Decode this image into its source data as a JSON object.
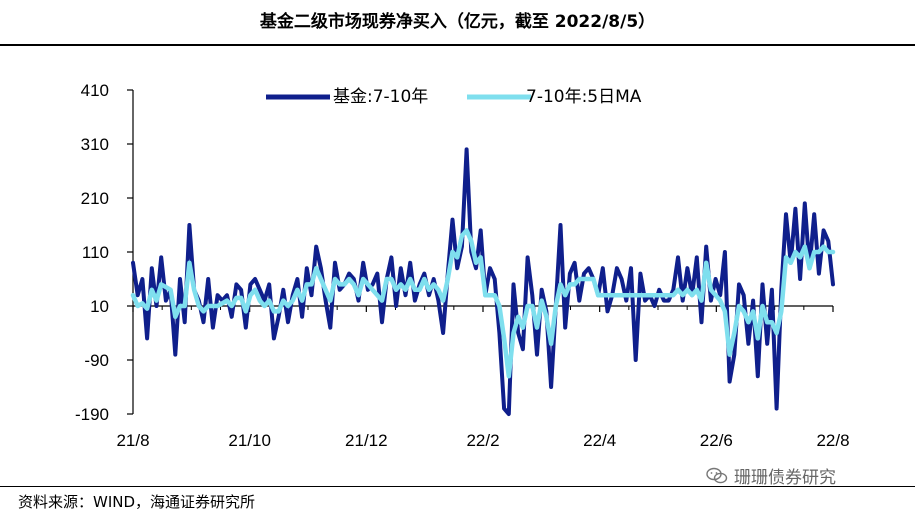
{
  "title": "基金二级市场现券净买入（亿元，截至 2022/8/5）",
  "source": "资料来源：WIND，海通证券研究所",
  "watermark": "珊珊债券研究",
  "colors": {
    "series1": "#0f1f8c",
    "series2": "#7fdfee"
  },
  "chart_data": {
    "type": "line",
    "yticks": [
      410,
      310,
      210,
      110,
      10,
      -90,
      -190
    ],
    "ylim": [
      -190,
      410
    ],
    "xticks": [
      "21/8",
      "21/10",
      "21/12",
      "22/2",
      "22/4",
      "22/6",
      "22/8"
    ],
    "grid": false,
    "legend_position": "top",
    "series": [
      {
        "name": "基金:7-10年",
        "values": [
          90,
          30,
          60,
          -50,
          80,
          10,
          100,
          20,
          40,
          -80,
          60,
          -20,
          160,
          40,
          20,
          -20,
          60,
          -30,
          30,
          20,
          30,
          -10,
          50,
          40,
          -30,
          50,
          60,
          40,
          20,
          50,
          -50,
          -10,
          40,
          -20,
          30,
          60,
          -10,
          80,
          30,
          120,
          80,
          20,
          -30,
          90,
          40,
          50,
          70,
          60,
          20,
          90,
          40,
          50,
          70,
          -20,
          60,
          100,
          10,
          80,
          30,
          90,
          20,
          50,
          70,
          30,
          60,
          20,
          -40,
          70,
          170,
          80,
          120,
          300,
          110,
          80,
          150,
          30,
          80,
          60,
          -40,
          -180,
          -190,
          50,
          -40,
          -70,
          100,
          30,
          -80,
          40,
          0,
          -140,
          10,
          160,
          -30,
          70,
          90,
          20,
          70,
          80,
          60,
          30,
          80,
          0,
          30,
          80,
          60,
          20,
          80,
          -90,
          70,
          20,
          30,
          10,
          40,
          20,
          20,
          40,
          100,
          20,
          80,
          30,
          100,
          -20,
          120,
          20,
          60,
          30,
          110,
          -130,
          -80,
          50,
          30,
          -60,
          20,
          -120,
          50,
          -60,
          40,
          -180,
          40,
          180,
          90,
          190,
          60,
          200,
          80,
          180,
          70,
          150,
          130,
          50
        ]
      },
      {
        "name": "7-10年:5日MA",
        "values": [
          30,
          10,
          15,
          5,
          40,
          20,
          50,
          45,
          40,
          -10,
          10,
          10,
          90,
          40,
          10,
          0,
          10,
          10,
          10,
          15,
          20,
          10,
          25,
          25,
          0,
          30,
          40,
          20,
          10,
          20,
          0,
          0,
          20,
          10,
          20,
          40,
          20,
          50,
          50,
          80,
          60,
          40,
          20,
          60,
          50,
          50,
          60,
          50,
          30,
          60,
          50,
          40,
          30,
          20,
          60,
          60,
          40,
          50,
          40,
          60,
          40,
          40,
          60,
          40,
          50,
          40,
          20,
          60,
          110,
          100,
          140,
          150,
          130,
          90,
          100,
          30,
          30,
          30,
          10,
          -50,
          -120,
          -40,
          -10,
          -30,
          10,
          10,
          -30,
          20,
          -10,
          -60,
          10,
          50,
          30,
          50,
          50,
          60,
          60,
          60,
          60,
          30,
          30,
          30,
          30,
          30,
          30,
          30,
          30,
          30,
          30,
          30,
          30,
          30,
          30,
          30,
          30,
          30,
          40,
          30,
          40,
          30,
          40,
          20,
          90,
          40,
          30,
          20,
          0,
          -80,
          -40,
          10,
          0,
          -20,
          0,
          -50,
          10,
          -20,
          -20,
          -40,
          0,
          100,
          90,
          110,
          100,
          120,
          80,
          110,
          110,
          120,
          110,
          110
        ]
      }
    ]
  }
}
